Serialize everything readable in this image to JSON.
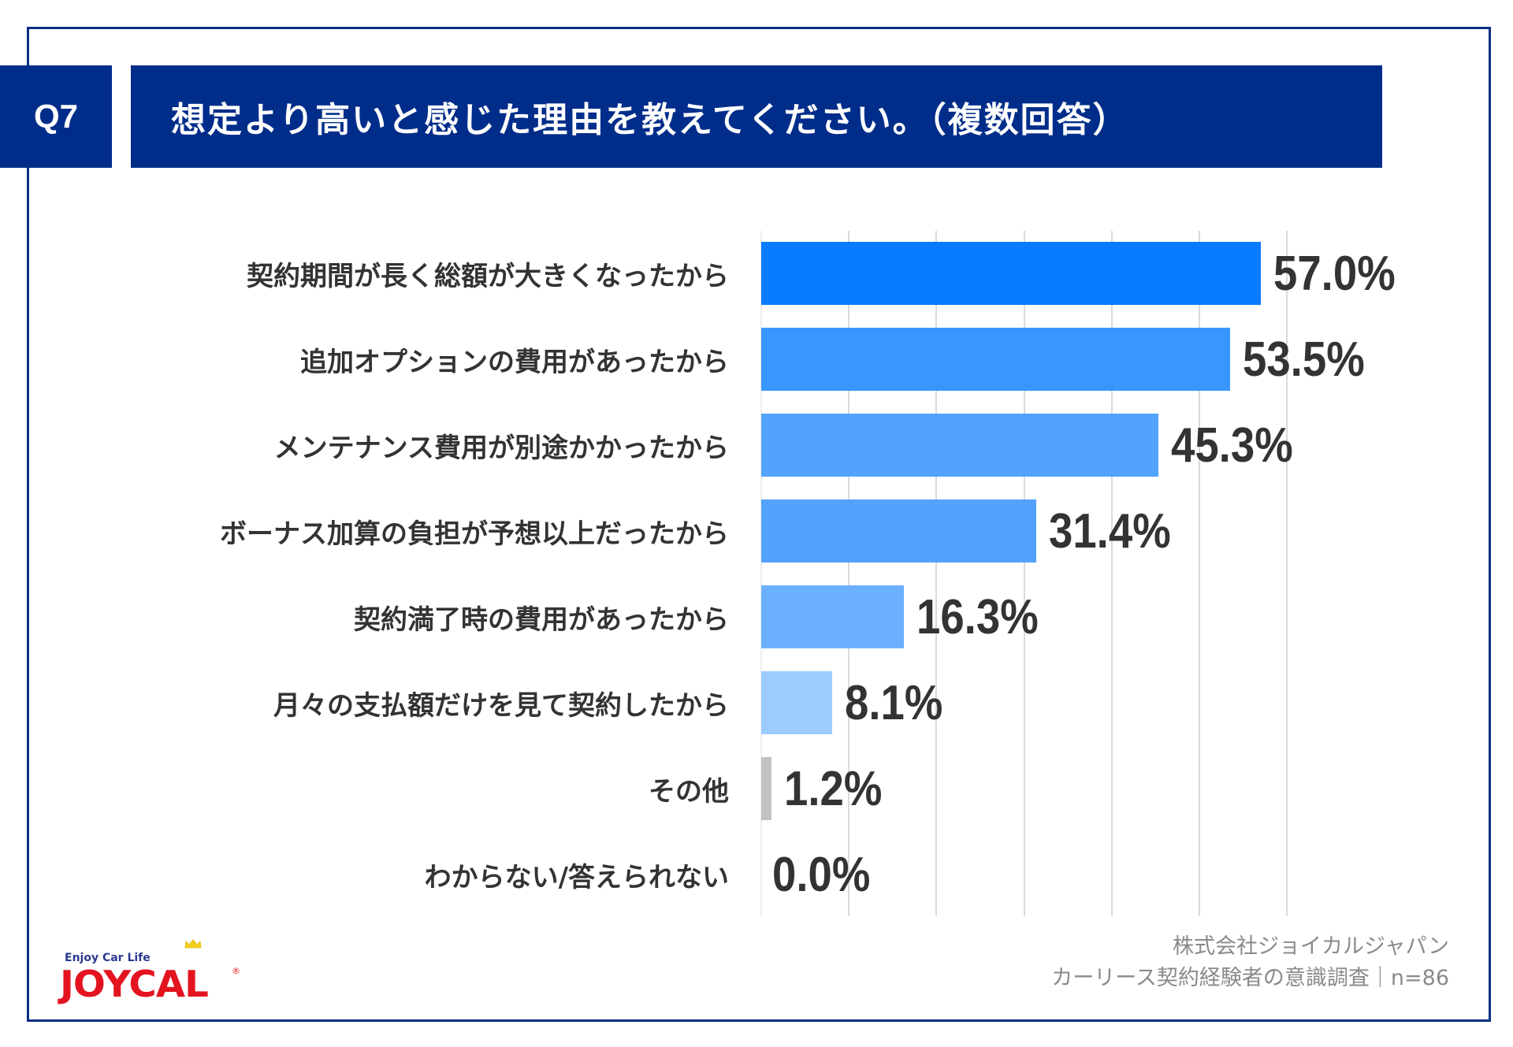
{
  "header": {
    "question_number": "Q7",
    "title": "想定より高いと感じた理由を教えてください。（複数回答）"
  },
  "colors": {
    "header_bg": "#002D8A",
    "frame": "#0A2F86",
    "text": "#333333",
    "gridline": "#DADADA"
  },
  "chart_data": {
    "type": "bar",
    "orientation": "horizontal",
    "title": "想定より高いと感じた理由を教えてください。（複数回答）",
    "xlabel": "",
    "ylabel": "",
    "xlim": [
      0,
      60
    ],
    "grid": true,
    "grid_step": 10,
    "unit": "%",
    "categories": [
      "契約期間が長く総額が大きくなったから",
      "追加オプションの費用があったから",
      "メンテナンス費用が別途かかったから",
      "ボーナス加算の負担が予想以上だったから",
      "契約満了時の費用があったから",
      "月々の支払額だけを見て契約したから",
      "その他",
      "わからない/答えられない"
    ],
    "values": [
      57.0,
      53.5,
      45.3,
      31.4,
      16.3,
      8.1,
      1.2,
      0.0
    ],
    "value_labels": [
      "57.0%",
      "53.5%",
      "45.3%",
      "31.4%",
      "16.3%",
      "8.1%",
      "1.2%",
      "0.0%"
    ],
    "bar_colors": [
      "#0077FF",
      "#3393FF",
      "#4CA0FF",
      "#4C9FFE",
      "#66ADFF",
      "#99C9FF",
      "#C0C0C0",
      "#C0C0C0"
    ]
  },
  "footer": {
    "company": "株式会社ジョイカルジャパン",
    "survey": "カーリース契約経験者の意識調査｜n=86"
  },
  "logo": {
    "tagline": "Enjoy Car Life",
    "wordmark": "JOYCAL",
    "registered": "®"
  }
}
